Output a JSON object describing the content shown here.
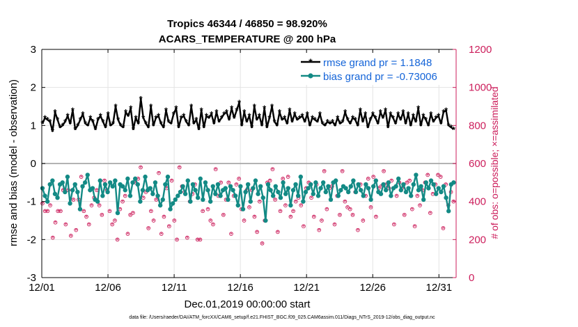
{
  "chart_data": {
    "type": "line",
    "title": "Tropics 46344 / 46850 = 98.920%",
    "subtitle": "ACARS_TEMPERATURE @ 200 hPa",
    "xlabel": "Dec.01,2019 00:00:00 start",
    "ylabel": "rmse and bias (model - observation)",
    "ylabel_right": "# of obs: o=possible; ×=assimilated",
    "footnote": "data file: /Users/raeder/DAI/ATM_forcXX/CAM6_setup/f.e21.FHIST_BGC.f09_025.CAM6assim.011/Diags_NTrS_2019-12/obs_diag_output.nc",
    "xlim": [
      0,
      31.3
    ],
    "ylim": [
      -3,
      3
    ],
    "ylim_right": [
      0,
      1200
    ],
    "x_ticks": [
      0,
      5,
      10,
      15,
      20,
      25,
      30
    ],
    "x_tick_labels": [
      "12/01",
      "12/06",
      "12/11",
      "12/16",
      "12/21",
      "12/26",
      "12/31"
    ],
    "y_ticks": [
      -3,
      -2,
      -1,
      0,
      1,
      2,
      3
    ],
    "y_tick_labels": [
      "-3",
      "-2",
      "-1",
      "0",
      "1",
      "2",
      "3"
    ],
    "y_right_ticks": [
      0,
      200,
      400,
      600,
      800,
      1000,
      1200
    ],
    "y_right_tick_labels": [
      "0",
      "200",
      "400",
      "600",
      "800",
      "1000",
      "1200"
    ],
    "grid": true,
    "legend_position": "top-right",
    "colors": {
      "rmse": "#000000",
      "bias": "#138a85",
      "obs": "#cc1d5b",
      "legend_text": "#1464d8",
      "zero_line": "#a8a8a8"
    },
    "series": [
      {
        "name": "rmse grand pr = 1.1848",
        "marker": "asterisk",
        "values": [
          1.05,
          1.2,
          1.15,
          1.1,
          0.85,
          1.35,
          1.15,
          0.95,
          1.0,
          1.1,
          1.25,
          1.05,
          1.4,
          0.9,
          1.0,
          1.15,
          1.3,
          1.05,
          1.0,
          1.2,
          1.1,
          0.9,
          1.15,
          1.25,
          1.1,
          0.95,
          1.3,
          1.0,
          1.05,
          1.5,
          1.15,
          1.0,
          0.95,
          1.35,
          1.25,
          1.45,
          0.9,
          1.2,
          1.05,
          1.7,
          1.2,
          1.05,
          0.95,
          1.5,
          1.0,
          1.2,
          1.25,
          1.05,
          0.95,
          1.4,
          1.1,
          1.05,
          1.3,
          1.45,
          0.95,
          1.2,
          1.25,
          1.1,
          1.0,
          1.5,
          1.05,
          1.15,
          0.9,
          1.4,
          0.95,
          1.25,
          1.2,
          1.3,
          1.05,
          1.35,
          1.1,
          1.2,
          1.3,
          1.35,
          1.15,
          1.45,
          1.2,
          1.4,
          1.6,
          1.0,
          1.35,
          1.1,
          1.25,
          0.95,
          1.5,
          1.15,
          1.25,
          1.0,
          1.45,
          0.95,
          1.2,
          1.5,
          1.1,
          1.0,
          1.35,
          1.15,
          1.2,
          1.05,
          1.4,
          1.1,
          1.3,
          1.15,
          1.2,
          1.25,
          1.1,
          1.3,
          1.0,
          1.2,
          1.15,
          1.1,
          1.3,
          1.05,
          1.0,
          1.1,
          1.05,
          1.1,
          1.0,
          1.2,
          1.05,
          1.1,
          1.35,
          1.15,
          1.05,
          1.2,
          1.15,
          1.0,
          1.4,
          1.1,
          1.3,
          0.95,
          1.15,
          1.3,
          1.2,
          1.05,
          1.35,
          1.2,
          1.4,
          0.95,
          1.3,
          1.2,
          1.05,
          1.3,
          1.15,
          1.35,
          1.05,
          1.3,
          1.0,
          1.25,
          1.1,
          1.45,
          1.0,
          1.25,
          1.15,
          1.0,
          1.3,
          1.1,
          1.2,
          1.25,
          1.05,
          1.35,
          1.4,
          1.0,
          0.95,
          0.9
        ]
      },
      {
        "name": "bias grand pr = -0.73006",
        "marker": "circle",
        "values": [
          -0.65,
          -0.85,
          -1.0,
          -0.55,
          -0.45,
          -0.8,
          -0.9,
          -0.55,
          -0.5,
          -0.75,
          -0.35,
          -1.05,
          -0.7,
          -0.55,
          -0.75,
          -1.2,
          -0.6,
          -0.5,
          -0.3,
          -0.7,
          -0.65,
          -0.95,
          -1.0,
          -0.45,
          -0.85,
          -0.55,
          -0.75,
          -0.5,
          -0.6,
          -0.45,
          -1.3,
          -0.55,
          -0.6,
          -0.7,
          -0.4,
          -0.85,
          -0.5,
          -0.4,
          -0.55,
          -1.0,
          -0.7,
          -0.35,
          -0.7,
          -0.65,
          -0.8,
          -0.5,
          -0.85,
          -1.1,
          -0.95,
          -0.55,
          -0.35,
          -1.2,
          -1.05,
          -0.95,
          -0.85,
          -0.75,
          -0.6,
          -0.8,
          -0.45,
          -1.0,
          -0.55,
          -0.7,
          -0.9,
          -0.4,
          -0.95,
          -0.5,
          -0.7,
          -1.0,
          -0.6,
          -0.8,
          -0.55,
          -0.85,
          -0.7,
          -0.65,
          -0.95,
          -0.6,
          -0.7,
          -0.85,
          -1.1,
          -0.6,
          -1.2,
          -0.75,
          -0.55,
          -1.0,
          -0.65,
          -0.45,
          -0.8,
          -0.6,
          -0.9,
          -1.5,
          -0.55,
          -0.7,
          -0.85,
          -0.6,
          -0.75,
          -0.9,
          -0.5,
          -0.8,
          -0.65,
          -1.1,
          -0.7,
          -0.55,
          -0.85,
          -0.35,
          -1.0,
          -0.75,
          -0.65,
          -0.55,
          -0.8,
          -0.5,
          -0.85,
          -0.65,
          -0.5,
          -0.75,
          -0.6,
          -0.95,
          -0.5,
          -0.45,
          -0.85,
          -0.7,
          -0.6,
          -0.65,
          -0.75,
          -0.6,
          -0.45,
          -0.75,
          -0.55,
          -0.7,
          -0.85,
          -0.55,
          -0.65,
          -0.95,
          -0.6,
          -0.45,
          -0.75,
          -0.8,
          -0.55,
          -0.7,
          -0.5,
          -0.85,
          -0.65,
          -0.6,
          -0.4,
          -0.7,
          -0.55,
          -0.75,
          -0.65,
          -0.85,
          -0.55,
          -0.3,
          -0.7,
          -0.6,
          -0.95,
          -0.5,
          -0.65,
          -0.45,
          -0.55,
          -0.8,
          -0.65,
          -0.75,
          -0.6,
          -0.9,
          -1.25,
          -0.55,
          -0.5
        ]
      }
    ],
    "obs_possible": [
      390,
      350,
      350,
      380,
      210,
      290,
      350,
      350,
      460,
      280,
      460,
      220,
      410,
      250,
      410,
      530,
      350,
      320,
      280,
      380,
      420,
      460,
      380,
      330,
      510,
      460,
      350,
      280,
      300,
      200,
      360,
      400,
      430,
      230,
      330,
      340,
      500,
      520,
      580,
      420,
      450,
      260,
      350,
      300,
      410,
      550,
      230,
      320,
      470,
      270,
      510,
      300,
      200,
      580,
      480,
      450,
      210,
      400,
      440,
      490,
      200,
      200,
      350,
      500,
      360,
      300,
      280,
      570,
      430,
      500,
      330,
      410,
      500,
      230,
      430,
      490,
      520,
      360,
      300,
      460,
      370,
      460,
      320,
      240,
      400,
      180,
      300,
      500,
      510,
      570,
      410,
      240,
      350,
      520,
      380,
      530,
      320,
      350,
      400,
      420,
      380,
      270,
      470,
      500,
      420,
      320,
      490,
      250,
      300,
      560,
      360,
      470,
      480,
      280,
      430,
      330,
      560,
      400,
      370,
      360,
      330,
      450,
      250,
      490,
      300,
      430,
      520,
      370,
      530,
      320,
      470,
      480,
      560,
      490,
      470,
      510,
      280,
      430,
      500,
      470,
      330,
      500,
      510,
      360,
      270,
      430,
      380,
      460,
      500,
      540,
      340,
      440,
      490,
      540,
      530,
      260,
      490,
      380,
      450,
      400
    ]
  }
}
